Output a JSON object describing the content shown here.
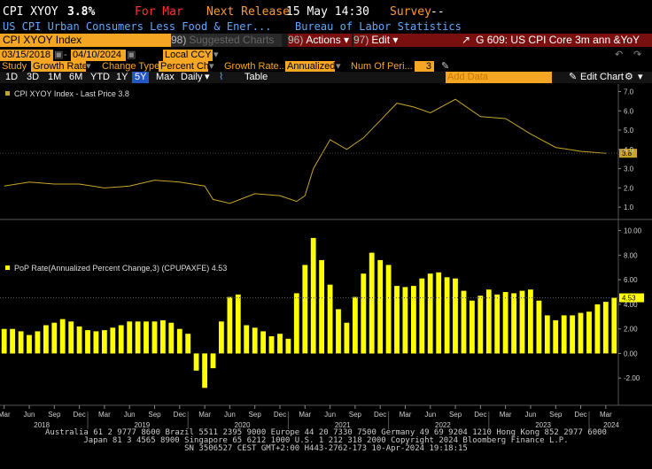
{
  "header": {
    "ticker": "CPI XYOY",
    "value": "3.8%",
    "for_label": "For Mar",
    "next_release_label": "Next Release",
    "next_release": "15 May 14:30",
    "survey_label": "Survey",
    "survey": "--",
    "description": "US CPI Urban Consumers Less Food & Ener...",
    "source": "Bureau of Labor Statistics"
  },
  "toolbar": {
    "security": "CPI XYOY Index",
    "suggested_num": "98)",
    "suggested": "Suggested Charts",
    "actions_num": "96)",
    "actions": "Actions",
    "edit_num": "97)",
    "edit": "Edit",
    "chart_title": "G 609: US CPI Core 3m ann &YoY"
  },
  "controls": {
    "start_date": "03/15/2018",
    "end_date": "04/10/2024",
    "currency": "Local CCY",
    "study_label": "Study",
    "study_value": "Growth Rate",
    "change_type_label": "Change Type",
    "change_type_value": "Percent Ch",
    "growth_rate_label": "Growth Rate...",
    "growth_rate_value": "Annualized",
    "num_periods_label": "Num Of Peri...",
    "num_periods_value": "3",
    "add_data": "Add Data",
    "edit_chart": "Edit Chart"
  },
  "periods": [
    "1D",
    "3D",
    "1M",
    "6M",
    "YTD",
    "1Y",
    "5Y",
    "Max"
  ],
  "selected_period": "5Y",
  "frequency": "Daily",
  "table_label": "Table",
  "legend": {
    "top": "CPI XYOY Index - Last Price 3.8",
    "bottom": "PoP Rate(Annualized Percent Change,3) (CPUPAXFE) 4.53"
  },
  "footer": {
    "line1": "Australia 61 2 9777 8600 Brazil 5511 2395 9000 Europe 44 20 7330 7500 Germany 49 69 9204 1210 Hong Kong 852 2977 6000",
    "line2": "Japan 81 3 4565 8900        Singapore 65 6212 1000        U.S. 1 212 318 2000          Copyright 2024 Bloomberg Finance L.P.",
    "line3": "SN 3506527 CEST GMT+2:00 H443-2762-173 10-Apr-2024 19:18:15"
  },
  "chart_data": [
    {
      "type": "line",
      "series": [
        {
          "name": "CPI XYOY Index - Last Price",
          "last": "3.8",
          "x": [
            "2018-03",
            "2018-06",
            "2018-09",
            "2018-12",
            "2019-03",
            "2019-06",
            "2019-09",
            "2019-12",
            "2020-03",
            "2020-04",
            "2020-06",
            "2020-09",
            "2020-12",
            "2021-02",
            "2021-03",
            "2021-04",
            "2021-06",
            "2021-08",
            "2021-10",
            "2021-12",
            "2022-02",
            "2022-04",
            "2022-06",
            "2022-09",
            "2022-12",
            "2023-03",
            "2023-06",
            "2023-09",
            "2023-12",
            "2024-03"
          ],
          "y": [
            2.1,
            2.3,
            2.2,
            2.2,
            2.0,
            2.1,
            2.4,
            2.3,
            2.1,
            1.4,
            1.2,
            1.7,
            1.6,
            1.3,
            1.6,
            3.0,
            4.5,
            4.0,
            4.6,
            5.5,
            6.4,
            6.2,
            5.9,
            6.6,
            5.7,
            5.6,
            4.8,
            4.1,
            3.9,
            3.8
          ]
        }
      ],
      "ylim": [
        0.5,
        7.3
      ],
      "yticks": [
        "7.0",
        "6.0",
        "5.0",
        "4.0",
        "3.0",
        "2.0",
        "1.0"
      ],
      "last_label": "3.8"
    },
    {
      "type": "bar",
      "series": [
        {
          "name": "PoP Rate(Annualized Percent Change,3) (CPUPAXFE)",
          "last": "4.53",
          "values": [
            2.0,
            2.0,
            1.8,
            1.5,
            1.8,
            2.3,
            2.5,
            2.8,
            2.6,
            2.2,
            1.9,
            1.8,
            1.9,
            2.1,
            2.3,
            2.6,
            2.6,
            2.6,
            2.6,
            2.7,
            2.5,
            2.0,
            1.6,
            -1.4,
            -2.8,
            -1.2,
            2.6,
            4.6,
            4.8,
            2.3,
            2.1,
            1.8,
            1.4,
            1.6,
            1.2,
            4.9,
            7.2,
            9.4,
            7.6,
            5.6,
            3.6,
            2.5,
            4.6,
            6.5,
            8.2,
            7.6,
            7.2,
            5.5,
            5.4,
            5.5,
            6.1,
            6.5,
            6.6,
            6.2,
            6.1,
            5.1,
            4.3,
            4.7,
            5.2,
            4.8,
            5.0,
            4.9,
            5.1,
            5.2,
            4.3,
            3.1,
            2.7,
            3.1,
            3.1,
            3.3,
            3.4,
            4.0,
            4.2,
            4.53
          ]
        }
      ],
      "ylim": [
        -4,
        10.4
      ],
      "yticks": [
        "10.00",
        "8.00",
        "6.00",
        "4.00",
        "2.00",
        "0.00",
        "-2.00"
      ],
      "last_label": "4.53"
    }
  ],
  "xaxis": {
    "months": [
      "Mar",
      "Jun",
      "Sep",
      "Dec",
      "Mar",
      "Jun",
      "Sep",
      "Dec",
      "Mar",
      "Jun",
      "Sep",
      "Dec",
      "Mar",
      "Jun",
      "Sep",
      "Dec",
      "Mar",
      "Jun",
      "Sep",
      "Dec",
      "Mar",
      "Jun",
      "Sep",
      "Dec",
      "Mar"
    ],
    "years": [
      "2018",
      "2019",
      "2020",
      "2021",
      "2022",
      "2023",
      "2024"
    ]
  },
  "colors": {
    "accent": "#f5a623",
    "line": "#c8a42a",
    "bar": "#ffff00",
    "header_red": "#ff3333",
    "header_blue": "#5fa8ff"
  }
}
